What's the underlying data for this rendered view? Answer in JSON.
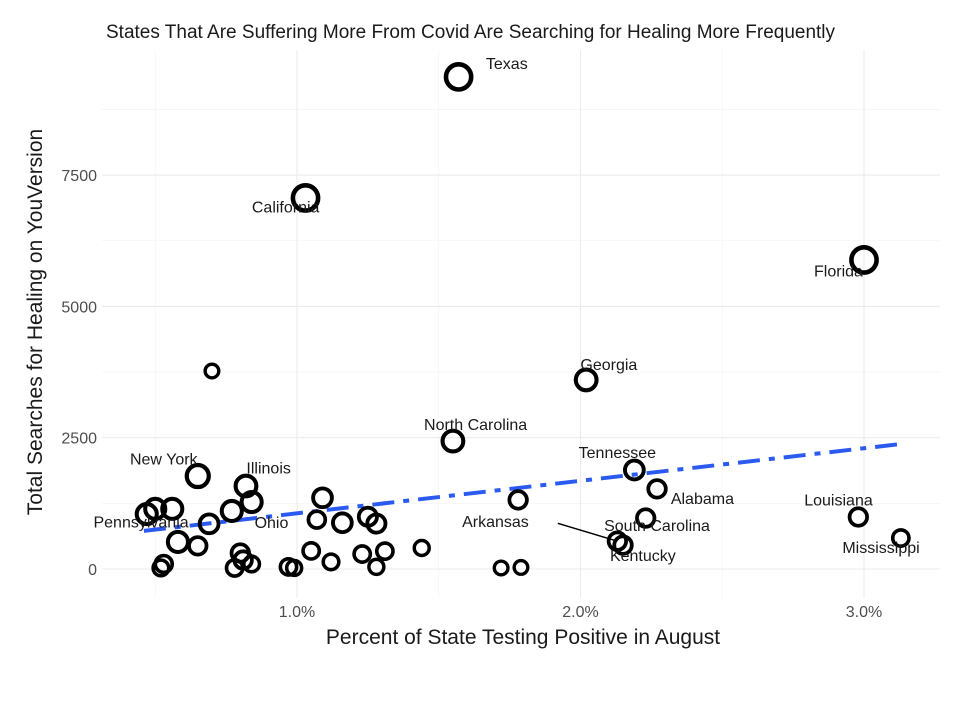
{
  "chart_data": {
    "type": "scatter",
    "title": "States That Are Suffering More From Covid Are Searching for Healing More Frequently",
    "xlabel": "Percent of State Testing Positive in August",
    "ylabel": "Total Searches for Healing on YouVersion",
    "xlim": [
      0.35,
      3.25
    ],
    "ylim": [
      -450,
      9850
    ],
    "x_ticks": [
      1.0,
      2.0,
      3.0
    ],
    "x_tick_labels": [
      "1.0%",
      "2.0%",
      "3.0%"
    ],
    "x_minor": [
      0.5,
      1.5,
      2.5
    ],
    "y_ticks": [
      0,
      2500,
      5000,
      7500
    ],
    "y_tick_labels": [
      "0",
      "2500",
      "5000",
      "7500"
    ],
    "y_minor": [
      1250,
      3750,
      6250,
      8750
    ],
    "grid": true,
    "legend": "none",
    "trend_line": {
      "style": "dashed-dot",
      "color": "#2b5af0",
      "x": [
        0.46,
        3.13
      ],
      "y": [
        725,
        2380
      ]
    },
    "points": [
      {
        "label": "Texas",
        "x": 1.57,
        "y": 9370,
        "size": 3
      },
      {
        "label": "California",
        "x": 1.03,
        "y": 7065,
        "size": 3
      },
      {
        "label": "Florida",
        "x": 3.0,
        "y": 5885,
        "size": 3
      },
      {
        "label": "Georgia",
        "x": 2.02,
        "y": 3600,
        "size": 2.3
      },
      {
        "label": "North Carolina",
        "x": 1.55,
        "y": 2435,
        "size": 2.3
      },
      {
        "label": "",
        "x": 0.7,
        "y": 3770,
        "size": 1.2
      },
      {
        "label": "New York",
        "x": 0.65,
        "y": 1770,
        "size": 2.5
      },
      {
        "label": "Illinois",
        "x": 0.82,
        "y": 1580,
        "size": 2.3
      },
      {
        "label": "Tennessee",
        "x": 2.19,
        "y": 1885,
        "size": 2
      },
      {
        "label": "Alabama",
        "x": 2.27,
        "y": 1525,
        "size": 1.8
      },
      {
        "label": "Louisiana",
        "x": 2.98,
        "y": 990,
        "size": 1.8
      },
      {
        "label": "Mississippi",
        "x": 3.13,
        "y": 590,
        "size": 1.6
      },
      {
        "label": "Arkansas",
        "x": 1.78,
        "y": 1315,
        "size": 1.8
      },
      {
        "label": "South Carolina",
        "x": 2.23,
        "y": 970,
        "size": 1.8
      },
      {
        "label": "Kentucky",
        "x": 2.15,
        "y": 455,
        "size": 1.8
      },
      {
        "label": "",
        "x": 2.13,
        "y": 530,
        "size": 1.8
      },
      {
        "label": "Pennsylvania",
        "x": 0.47,
        "y": 1045,
        "size": 2.2
      },
      {
        "label": "Ohio",
        "x": 0.77,
        "y": 1105,
        "size": 2.2
      },
      {
        "label": "",
        "x": 0.5,
        "y": 1145,
        "size": 2.2
      },
      {
        "label": "",
        "x": 0.56,
        "y": 1145,
        "size": 2.2
      },
      {
        "label": "",
        "x": 0.84,
        "y": 1275,
        "size": 2.2
      },
      {
        "label": "",
        "x": 0.69,
        "y": 860,
        "size": 2
      },
      {
        "label": "",
        "x": 0.58,
        "y": 515,
        "size": 2.2
      },
      {
        "label": "",
        "x": 0.65,
        "y": 440,
        "size": 1.8
      },
      {
        "label": "",
        "x": 0.53,
        "y": 95,
        "size": 1.7
      },
      {
        "label": "",
        "x": 0.52,
        "y": 20,
        "size": 1.5
      },
      {
        "label": "",
        "x": 0.8,
        "y": 305,
        "size": 1.8
      },
      {
        "label": "",
        "x": 0.81,
        "y": 170,
        "size": 1.8
      },
      {
        "label": "",
        "x": 0.78,
        "y": 20,
        "size": 1.6
      },
      {
        "label": "",
        "x": 0.84,
        "y": 95,
        "size": 1.5
      },
      {
        "label": "",
        "x": 0.97,
        "y": 40,
        "size": 1.6
      },
      {
        "label": "",
        "x": 0.99,
        "y": 20,
        "size": 1.4
      },
      {
        "label": "",
        "x": 1.09,
        "y": 1355,
        "size": 2
      },
      {
        "label": "",
        "x": 1.07,
        "y": 940,
        "size": 1.7
      },
      {
        "label": "",
        "x": 1.16,
        "y": 880,
        "size": 2
      },
      {
        "label": "",
        "x": 1.25,
        "y": 995,
        "size": 1.9
      },
      {
        "label": "",
        "x": 1.28,
        "y": 865,
        "size": 1.9
      },
      {
        "label": "",
        "x": 1.05,
        "y": 345,
        "size": 1.6
      },
      {
        "label": "",
        "x": 1.12,
        "y": 135,
        "size": 1.5
      },
      {
        "label": "",
        "x": 1.23,
        "y": 285,
        "size": 1.6
      },
      {
        "label": "",
        "x": 1.31,
        "y": 340,
        "size": 1.6
      },
      {
        "label": "",
        "x": 1.28,
        "y": 40,
        "size": 1.4
      },
      {
        "label": "",
        "x": 1.44,
        "y": 400,
        "size": 1.4
      },
      {
        "label": "",
        "x": 1.72,
        "y": 20,
        "size": 1.2
      },
      {
        "label": "",
        "x": 1.79,
        "y": 30,
        "size": 1.2
      }
    ],
    "labels": [
      {
        "text": "Texas",
        "x": 1.74,
        "y": 9520
      },
      {
        "text": "California",
        "x": 0.96,
        "y": 6790
      },
      {
        "text": "Florida",
        "x": 2.91,
        "y": 5570
      },
      {
        "text": "Georgia",
        "x": 2.1,
        "y": 3790
      },
      {
        "text": "North Carolina",
        "x": 1.63,
        "y": 2650
      },
      {
        "text": "New York",
        "x": 0.53,
        "y": 1990
      },
      {
        "text": "Illinois",
        "x": 0.9,
        "y": 1820
      },
      {
        "text": "Tennessee",
        "x": 2.13,
        "y": 2110
      },
      {
        "text": "Alabama",
        "x": 2.43,
        "y": 1240
      },
      {
        "text": "Louisiana",
        "x": 2.91,
        "y": 1210
      },
      {
        "text": "Mississippi",
        "x": 3.06,
        "y": 300
      },
      {
        "text": "Arkansas",
        "x": 1.7,
        "y": 800
      },
      {
        "text": "South Carolina",
        "x": 2.27,
        "y": 720
      },
      {
        "text": "Kentucky",
        "x": 2.22,
        "y": 150
      },
      {
        "text": "Pennsylvania",
        "x": 0.45,
        "y": 790
      },
      {
        "text": "Ohio",
        "x": 0.91,
        "y": 780
      }
    ],
    "connector": {
      "from": {
        "x": 1.92,
        "y": 870
      },
      "to": {
        "x": 2.13,
        "y": 530
      }
    }
  }
}
